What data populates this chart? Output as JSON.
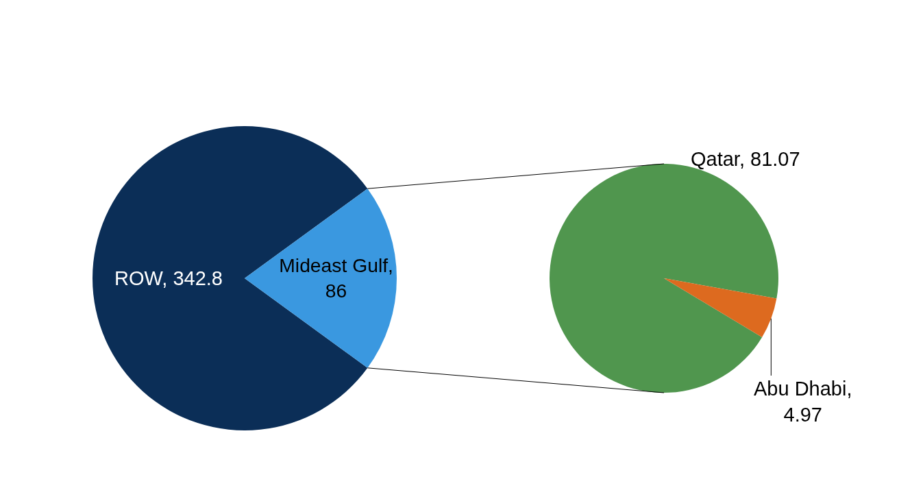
{
  "chart_data": [
    {
      "type": "pie",
      "categories": [
        "ROW, 342.8",
        "Mideast Gulf, 86"
      ],
      "values": [
        342.8,
        86
      ],
      "colors": [
        "#0b2e57",
        "#3a98e0"
      ]
    },
    {
      "type": "pie",
      "categories": [
        "Qatar, 81.07",
        "Abu Dhabi, 4.97"
      ],
      "values": [
        81.07,
        4.97
      ],
      "colors": [
        "#50964e",
        "#dd6a1f"
      ]
    }
  ]
}
